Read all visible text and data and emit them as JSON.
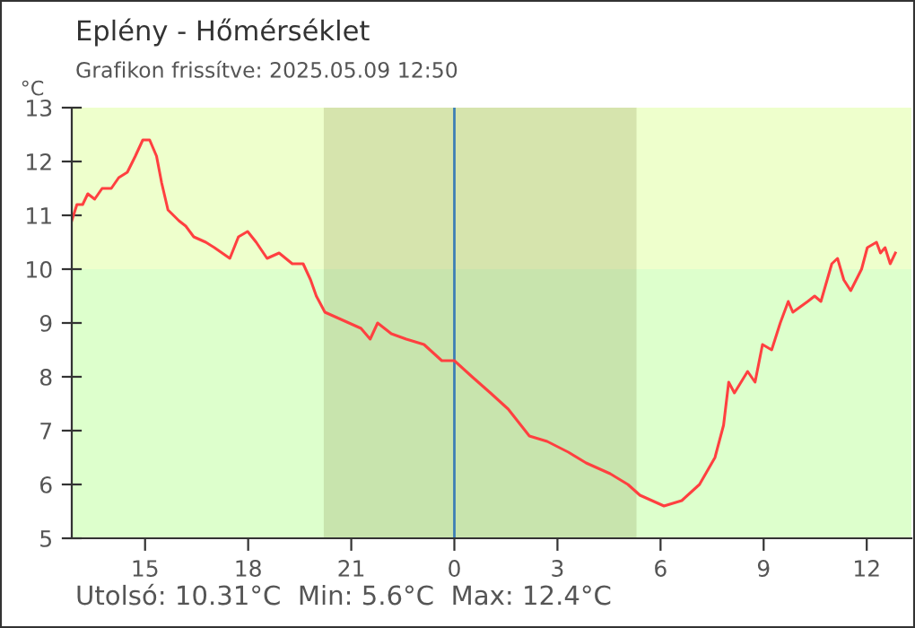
{
  "chart_data": {
    "type": "line",
    "title": "Eplény - Hőmérséklet",
    "subtitle": "Grafikon frissítve: 2025.05.09 12:50",
    "ylabel": "°C",
    "annotations": [
      "Utolsó: 10.31°C  Min: 5.6°C  Max: 12.4°C"
    ],
    "series": [
      {
        "color": "#ff4040",
        "x": [
          "2025-05-08T12:52",
          "2025-05-08T13:01",
          "2025-05-08T13:11",
          "2025-05-08T13:20",
          "2025-05-08T13:32",
          "2025-05-08T13:45",
          "2025-05-08T14:01",
          "2025-05-08T14:14",
          "2025-05-08T14:29",
          "2025-05-08T14:43",
          "2025-05-08T14:56",
          "2025-05-08T15:08",
          "2025-05-08T15:20",
          "2025-05-08T15:29",
          "2025-05-08T15:40",
          "2025-05-08T15:59",
          "2025-05-08T16:11",
          "2025-05-08T16:25",
          "2025-05-08T16:46",
          "2025-05-08T17:01",
          "2025-05-08T17:28",
          "2025-05-08T17:43",
          "2025-05-08T17:59",
          "2025-05-08T18:14",
          "2025-05-08T18:33",
          "2025-05-08T18:54",
          "2025-05-08T19:17",
          "2025-05-08T19:36",
          "2025-05-08T19:49",
          "2025-05-08T19:59",
          "2025-05-08T20:14",
          "2025-05-08T20:35",
          "2025-05-08T20:56",
          "2025-05-08T21:17",
          "2025-05-08T21:33",
          "2025-05-08T21:46",
          "2025-05-08T22:10",
          "2025-05-08T22:36",
          "2025-05-08T23:07",
          "2025-05-08T23:38",
          "2025-05-09T00:00",
          "2025-05-09T00:31",
          "2025-05-09T01:03",
          "2025-05-09T01:34",
          "2025-05-09T02:11",
          "2025-05-09T02:42",
          "2025-05-09T03:19",
          "2025-05-09T03:50",
          "2025-05-09T04:32",
          "2025-05-09T05:03",
          "2025-05-09T05:24",
          "2025-05-09T06:06",
          "2025-05-09T06:37",
          "2025-05-09T07:08",
          "2025-05-09T07:35",
          "2025-05-09T07:50",
          "2025-05-09T07:59",
          "2025-05-09T08:09",
          "2025-05-09T08:32",
          "2025-05-09T08:45",
          "2025-05-09T08:58",
          "2025-05-09T09:14",
          "2025-05-09T09:29",
          "2025-05-09T09:43",
          "2025-05-09T09:51",
          "2025-05-09T10:17",
          "2025-05-09T10:29",
          "2025-05-09T10:40",
          "2025-05-09T10:59",
          "2025-05-09T11:09",
          "2025-05-09T11:20",
          "2025-05-09T11:32",
          "2025-05-09T11:51",
          "2025-05-09T12:01",
          "2025-05-09T12:17",
          "2025-05-09T12:24",
          "2025-05-09T12:32",
          "2025-05-09T12:41",
          "2025-05-09T12:50"
        ],
        "values": [
          10.9,
          11.2,
          11.2,
          11.4,
          11.3,
          11.5,
          11.5,
          11.7,
          11.8,
          12.1,
          12.4,
          12.4,
          12.1,
          11.6,
          11.1,
          10.9,
          10.8,
          10.6,
          10.5,
          10.4,
          10.2,
          10.6,
          10.7,
          10.5,
          10.2,
          10.3,
          10.1,
          10.1,
          9.8,
          9.5,
          9.2,
          9.1,
          9.0,
          8.9,
          8.7,
          9.0,
          8.8,
          8.7,
          8.6,
          8.3,
          8.3,
          8.0,
          7.7,
          7.4,
          6.9,
          6.8,
          6.6,
          6.4,
          6.2,
          6.0,
          5.8,
          5.6,
          5.7,
          6.0,
          6.5,
          7.1,
          7.9,
          7.7,
          8.1,
          7.9,
          8.6,
          8.5,
          9.0,
          9.4,
          9.2,
          9.4,
          9.5,
          9.4,
          10.1,
          10.2,
          9.8,
          9.6,
          10.0,
          10.4,
          10.5,
          10.3,
          10.4,
          10.1,
          10.3
        ]
      }
    ],
    "xlim": [
      "2025-05-08T12:52",
      "2025-05-09T13:18"
    ],
    "ylim": [
      5,
      13
    ],
    "xticks": [
      {
        "value": "2025-05-08T15:00",
        "label": "15"
      },
      {
        "value": "2025-05-08T18:00",
        "label": "18"
      },
      {
        "value": "2025-05-08T21:00",
        "label": "21"
      },
      {
        "value": "2025-05-09T00:00",
        "label": "0"
      },
      {
        "value": "2025-05-09T03:00",
        "label": "3"
      },
      {
        "value": "2025-05-09T06:00",
        "label": "6"
      },
      {
        "value": "2025-05-09T09:00",
        "label": "9"
      },
      {
        "value": "2025-05-09T12:00",
        "label": "12"
      }
    ],
    "yticks": [
      5,
      6,
      7,
      8,
      9,
      10,
      11,
      12,
      13
    ],
    "bands": [
      {
        "axis": "y",
        "from": 10,
        "to": 13,
        "color": "#eeffcc"
      },
      {
        "axis": "y",
        "from": 5,
        "to": 10,
        "color": "#ddffcc"
      },
      {
        "axis": "x",
        "from": "2025-05-08T20:12",
        "to": "2025-05-09T05:18",
        "color": "#7a7a30"
      }
    ],
    "ref_lines": [
      {
        "axis": "x",
        "value": "2025-05-09T00:00",
        "color": "#3c7fb5"
      }
    ],
    "grid": false,
    "legend": false,
    "marker": "none",
    "line_style": "solid"
  }
}
